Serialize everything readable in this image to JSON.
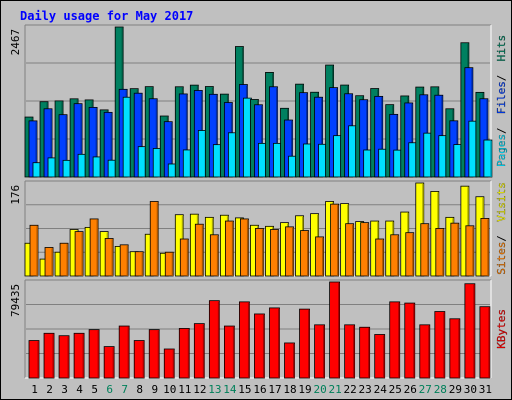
{
  "chart_data": [
    {
      "type": "bar",
      "title": "Daily usage for May 2017",
      "panel": "pages-files-hits",
      "max_label": "2467",
      "ylim": [
        0,
        2467
      ],
      "grid": true,
      "legend_position": "right",
      "legend": [
        {
          "label": "Pages",
          "color": "#00e0ff"
        },
        {
          "label": "Files",
          "color": "#0040ff"
        },
        {
          "label": "Hits",
          "color": "#008060"
        }
      ],
      "categories": [
        "1",
        "2",
        "3",
        "4",
        "5",
        "6",
        "7",
        "8",
        "9",
        "10",
        "11",
        "12",
        "13",
        "14",
        "15",
        "16",
        "17",
        "18",
        "19",
        "20",
        "21",
        "22",
        "23",
        "24",
        "25",
        "26",
        "27",
        "28",
        "29",
        "30",
        "31"
      ],
      "weekend_days": [
        "6",
        "7",
        "13",
        "14",
        "20",
        "21",
        "27",
        "28"
      ],
      "series": [
        {
          "name": "Hits",
          "color": "#008060",
          "values": [
            986,
            1238,
            1252,
            1286,
            1268,
            1104,
            2467,
            1453,
            1486,
            1003,
            1484,
            1511,
            1488,
            1363,
            2146,
            1275,
            1720,
            1130,
            1527,
            1394,
            1841,
            1512,
            1337,
            1455,
            1190,
            1333,
            1479,
            1483,
            1122,
            2208,
            1392
          ]
        },
        {
          "name": "Files",
          "color": "#0040ff",
          "values": [
            923,
            1122,
            1025,
            1206,
            1145,
            1063,
            1442,
            1378,
            1287,
            910,
            1366,
            1423,
            1360,
            1225,
            1521,
            1188,
            1484,
            937,
            1387,
            1312,
            1470,
            1369,
            1271,
            1326,
            1030,
            1218,
            1352,
            1345,
            924,
            1798,
            1287
          ]
        },
        {
          "name": "Pages",
          "color": "#00e0ff",
          "values": [
            235,
            314,
            274,
            373,
            330,
            276,
            1312,
            499,
            469,
            214,
            445,
            765,
            532,
            727,
            1297,
            553,
            553,
            342,
            543,
            538,
            680,
            842,
            444,
            457,
            442,
            563,
            721,
            680,
            533,
            918,
            608
          ]
        }
      ]
    },
    {
      "type": "bar",
      "panel": "sites-visits",
      "max_label": "176",
      "ylim": [
        0,
        176
      ],
      "grid": true,
      "legend_position": "right",
      "legend": [
        {
          "label": "Sites",
          "color": "#ff8000"
        },
        {
          "label": "Visits",
          "color": "#ffff00"
        }
      ],
      "categories": [
        "1",
        "2",
        "3",
        "4",
        "5",
        "6",
        "7",
        "8",
        "9",
        "10",
        "11",
        "12",
        "13",
        "14",
        "15",
        "16",
        "17",
        "18",
        "19",
        "20",
        "21",
        "22",
        "23",
        "24",
        "25",
        "26",
        "27",
        "28",
        "29",
        "30",
        "31"
      ],
      "series": [
        {
          "name": "Visits",
          "color": "#ffff00",
          "values": [
            62,
            32,
            45,
            88,
            92,
            84,
            56,
            46,
            79,
            43,
            116,
            117,
            111,
            115,
            110,
            96,
            94,
            101,
            114,
            118,
            141,
            137,
            103,
            104,
            104,
            121,
            176,
            160,
            111,
            170,
            150
          ]
        },
        {
          "name": "Sites",
          "color": "#ff8000",
          "values": [
            96,
            54,
            62,
            84,
            108,
            71,
            59,
            46,
            141,
            45,
            70,
            98,
            78,
            104,
            108,
            90,
            88,
            93,
            86,
            74,
            136,
            99,
            101,
            70,
            78,
            82,
            99,
            90,
            100,
            95,
            109
          ]
        }
      ]
    },
    {
      "type": "bar",
      "panel": "kbytes",
      "max_label": "79435",
      "ylim": [
        0,
        79435
      ],
      "grid": true,
      "legend_position": "right",
      "legend": [
        {
          "label": "KBytes",
          "color": "#ff0000"
        }
      ],
      "categories": [
        "1",
        "2",
        "3",
        "4",
        "5",
        "6",
        "7",
        "8",
        "9",
        "10",
        "11",
        "12",
        "13",
        "14",
        "15",
        "16",
        "17",
        "18",
        "19",
        "20",
        "21",
        "22",
        "23",
        "24",
        "25",
        "26",
        "27",
        "28",
        "29",
        "30",
        "31"
      ],
      "series": [
        {
          "name": "KBytes",
          "color": "#ff0000",
          "values": [
            31000,
            37000,
            35000,
            37000,
            40000,
            26000,
            43000,
            31000,
            40000,
            24000,
            41000,
            45000,
            64000,
            43000,
            63000,
            53000,
            58000,
            29000,
            57000,
            44000,
            79435,
            44000,
            42000,
            36000,
            63000,
            62000,
            44000,
            55000,
            49000,
            78000,
            59000
          ]
        }
      ]
    }
  ]
}
